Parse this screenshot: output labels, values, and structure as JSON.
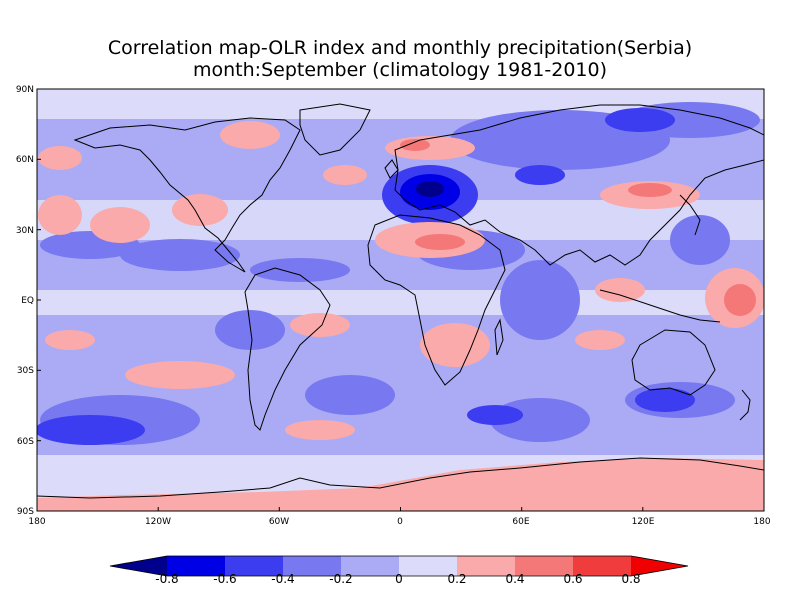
{
  "map": {
    "title_line1": "Correlation map-OLR index and monthly precipitation(Serbia)",
    "title_line2": "month:September (climatology 1981-2010)",
    "lat_labels": [
      "90N",
      "60N",
      "30N",
      "EQ",
      "30S",
      "60S",
      "90S"
    ],
    "lon_labels": [
      "180",
      "120W",
      "60W",
      "0",
      "60E",
      "120E",
      "180"
    ],
    "lat_values": [
      90,
      60,
      30,
      0,
      -30,
      -60,
      -90
    ],
    "lon_values": [
      -180,
      -120,
      -60,
      0,
      60,
      120,
      180
    ],
    "field": "correlation",
    "units": ""
  },
  "colorbar": {
    "labels": [
      "-0.8",
      "-0.6",
      "-0.4",
      "-0.2",
      "0",
      "0.2",
      "0.4",
      "0.6",
      "0.8"
    ],
    "levels": [
      -0.8,
      -0.6,
      -0.4,
      -0.2,
      0,
      0.2,
      0.4,
      0.6,
      0.8
    ],
    "colors": [
      "#00008c",
      "#0000e6",
      "#3c3cf0",
      "#7878f0",
      "#aaaaf5",
      "#dcdcfa",
      "#faaaaa",
      "#f57878",
      "#f03c3c",
      "#f00000"
    ]
  }
}
